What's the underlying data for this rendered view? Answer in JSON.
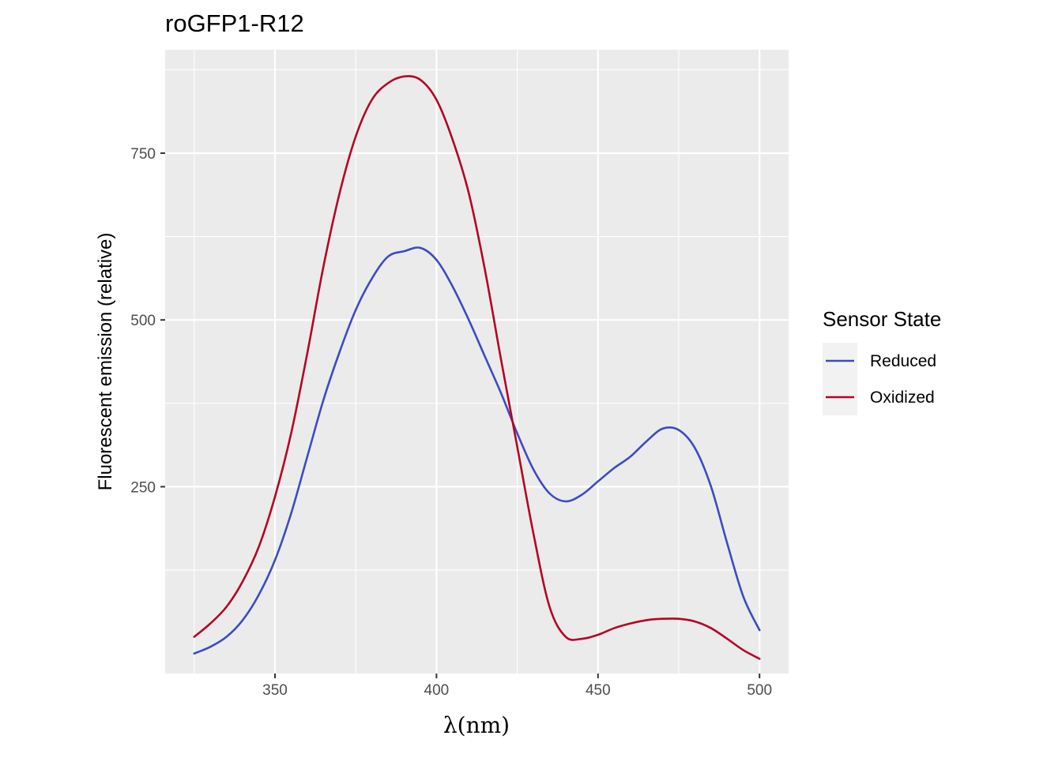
{
  "chart_data": {
    "type": "line",
    "title": "roGFP1-R12",
    "xlabel": "λ(nm)",
    "ylabel": "Fluorescent emission (relative)",
    "xlim": [
      316,
      509
    ],
    "ylim": [
      -30,
      905
    ],
    "x_ticks": [
      350,
      400,
      450,
      500
    ],
    "y_ticks": [
      250,
      500,
      750
    ],
    "grid": true,
    "legend": {
      "title": "Sensor State",
      "position": "right"
    },
    "x": [
      325,
      330,
      335,
      340,
      345,
      350,
      355,
      360,
      365,
      370,
      375,
      380,
      385,
      390,
      395,
      400,
      405,
      410,
      415,
      420,
      425,
      430,
      435,
      440,
      445,
      450,
      455,
      460,
      465,
      470,
      475,
      480,
      485,
      490,
      495,
      500
    ],
    "series": [
      {
        "name": "Reduced",
        "color": "#3b4cc0",
        "values": [
          0,
          10,
          25,
          50,
          88,
          140,
          210,
          295,
          380,
          452,
          515,
          562,
          595,
          603,
          608,
          590,
          550,
          500,
          445,
          390,
          330,
          276,
          240,
          228,
          238,
          258,
          278,
          295,
          318,
          337,
          335,
          308,
          250,
          165,
          85,
          35
        ]
      },
      {
        "name": "Oxidized",
        "color": "#b40426",
        "values": [
          25,
          45,
          70,
          108,
          160,
          235,
          330,
          450,
          580,
          690,
          775,
          830,
          855,
          865,
          860,
          830,
          770,
          690,
          575,
          440,
          310,
          180,
          70,
          25,
          22,
          28,
          38,
          45,
          50,
          52,
          52,
          48,
          38,
          22,
          5,
          -8
        ]
      }
    ]
  }
}
